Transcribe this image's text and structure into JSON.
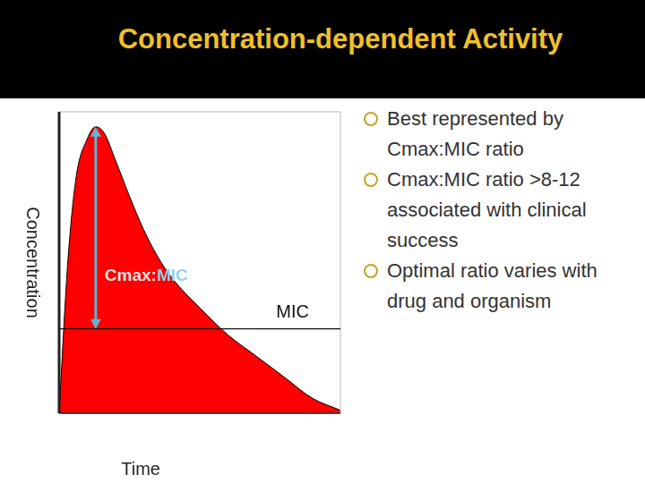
{
  "chart_data": {
    "type": "line",
    "title": "Concentration-dependent Activity",
    "x_label": "Time",
    "y_label": "Concentration",
    "x": [
      0,
      0.3,
      0.6,
      1.0,
      1.3,
      1.6,
      2,
      2.5,
      3,
      3.5,
      4,
      5,
      6,
      7,
      8,
      9,
      10
    ],
    "values": [
      0,
      4.9,
      7.8,
      9.1,
      9.5,
      9.3,
      8.4,
      7.2,
      6.1,
      5.2,
      4.5,
      3.5,
      2.6,
      1.9,
      1.2,
      0.5,
      0.1
    ],
    "color": "#ff0000",
    "xlim": [
      0,
      10
    ],
    "ylim": [
      0,
      10
    ],
    "grid": false,
    "tick_labels": false,
    "annotations": [
      {
        "type": "hline",
        "y": 2.8,
        "label": "MIC"
      },
      {
        "type": "arrow",
        "x": 1.3,
        "y_from": 9.5,
        "y_to": 2.8,
        "label": "Cmax:MIC"
      }
    ]
  },
  "slide": {
    "bullets": [
      "Best represented by Cmax:MIC ratio",
      "Cmax:MIC ratio >8-12 associated with clinical success",
      "Optimal ratio varies with drug and organism"
    ]
  }
}
